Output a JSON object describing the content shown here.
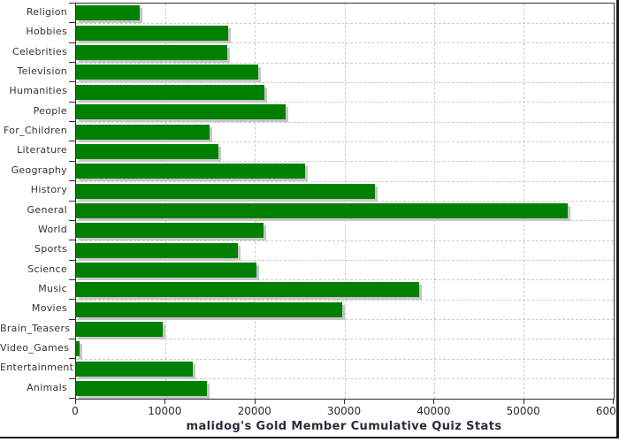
{
  "chart_data": {
    "type": "bar",
    "orientation": "horizontal",
    "title": "malidog's Gold Member Cumulative Quiz Stats",
    "categories": [
      "Religion",
      "Hobbies",
      "Celebrities",
      "Television",
      "Humanities",
      "People",
      "For_Children",
      "Literature",
      "Geography",
      "History",
      "General",
      "World",
      "Sports",
      "Science",
      "Music",
      "Movies",
      "Brain_Teasers",
      "Video_Games",
      "Entertainment",
      "Animals"
    ],
    "values": [
      7100,
      17000,
      16900,
      20300,
      21000,
      23400,
      14900,
      15900,
      25600,
      33400,
      54900,
      20900,
      18100,
      20100,
      38300,
      29700,
      9700,
      400,
      13000,
      14600
    ],
    "xlabel": "",
    "ylabel": "",
    "xlim": [
      0,
      60000
    ],
    "x_ticks": [
      0,
      10000,
      20000,
      30000,
      40000,
      50000,
      60000
    ],
    "grid": "both-dashed",
    "legend": "none",
    "colors": {
      "bar": "#008000",
      "bar_shadow": "#c6c6c6",
      "gridline": "#cccccc",
      "axis": "#2e2e2e",
      "label_text": "#333333",
      "title_text": "#2b2b3d"
    }
  }
}
